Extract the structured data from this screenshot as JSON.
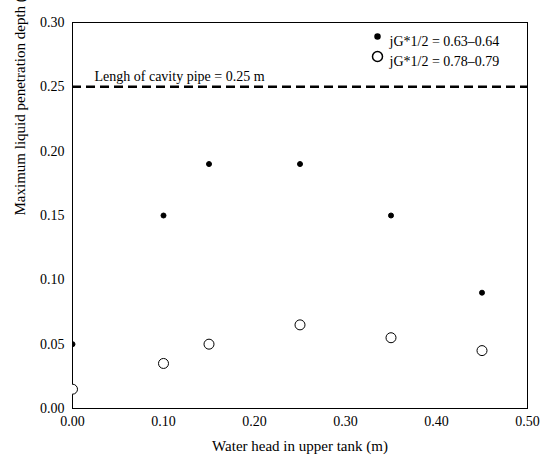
{
  "chart_data": {
    "type": "scatter",
    "x_label": "Water head in upper tank (m)",
    "y_label": "Maximum liquid penetration depth (m)",
    "xlim": [
      0,
      0.5
    ],
    "xticks": [
      0,
      0.1,
      0.2,
      0.3,
      0.4,
      0.5
    ],
    "ylim": [
      0,
      0.3
    ],
    "yticks": [
      0,
      0.05,
      0.1,
      0.15,
      0.2,
      0.25,
      0.3
    ],
    "grid": false,
    "legend": "top-right",
    "x": [
      0,
      0.1,
      0.15,
      0.25,
      0.35,
      0.45
    ],
    "series": [
      {
        "name": "jG*1/2 = 0.63–0.64",
        "color": "#000000",
        "marker": "filled circle",
        "values": [
          0.05,
          0.15,
          0.19,
          0.19,
          0.15,
          0.09
        ]
      },
      {
        "name": "jG*1/2 = 0.78–0.79",
        "color": "#000000",
        "marker": "open circle",
        "values": [
          0.015,
          0.035,
          0.05,
          0.065,
          0.055,
          0.045
        ]
      }
    ],
    "reference_line": {
      "y": 0.25,
      "label": "Lengh of cavity pipe = 0.25 m",
      "line_style": "dashed",
      "color": "#000000"
    }
  }
}
